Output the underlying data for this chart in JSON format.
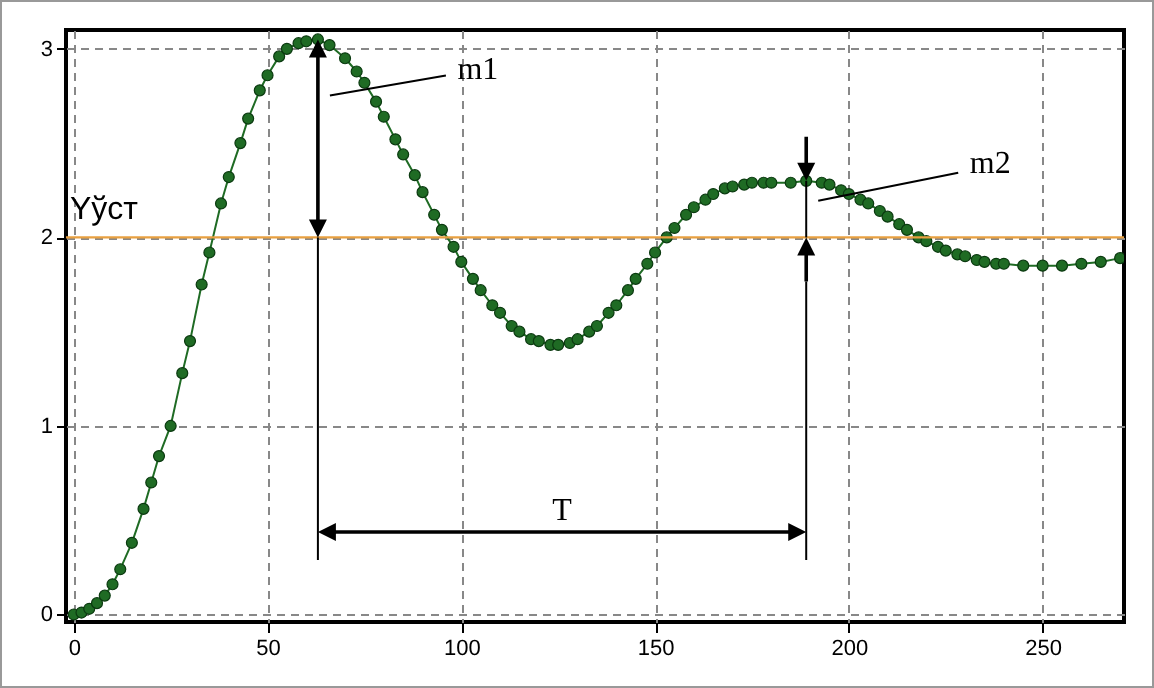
{
  "chart_data": {
    "type": "line",
    "x": [
      0,
      2,
      4,
      6,
      8,
      10,
      12,
      15,
      18,
      20,
      22,
      25,
      28,
      30,
      33,
      35,
      38,
      40,
      43,
      45,
      48,
      50,
      53,
      55,
      58,
      60,
      63,
      66,
      70,
      73,
      75,
      78,
      80,
      83,
      85,
      88,
      90,
      93,
      95,
      98,
      100,
      103,
      105,
      108,
      110,
      113,
      115,
      118,
      120,
      123,
      125,
      128,
      130,
      133,
      135,
      138,
      140,
      143,
      145,
      148,
      150,
      153,
      155,
      158,
      160,
      163,
      165,
      168,
      170,
      173,
      175,
      178,
      180,
      185,
      189,
      193,
      195,
      198,
      200,
      203,
      205,
      208,
      210,
      213,
      215,
      218,
      220,
      223,
      225,
      228,
      230,
      233,
      235,
      238,
      240,
      245,
      250,
      255,
      260,
      265,
      270
    ],
    "series": [
      {
        "color": "#1f6b24",
        "values": [
          0,
          0.01,
          0.03,
          0.06,
          0.1,
          0.16,
          0.24,
          0.38,
          0.56,
          0.7,
          0.84,
          1.0,
          1.28,
          1.45,
          1.75,
          1.92,
          2.18,
          2.32,
          2.5,
          2.63,
          2.78,
          2.86,
          2.96,
          3.0,
          3.03,
          3.04,
          3.05,
          3.02,
          2.95,
          2.88,
          2.82,
          2.72,
          2.64,
          2.52,
          2.44,
          2.33,
          2.24,
          2.12,
          2.04,
          1.95,
          1.87,
          1.78,
          1.72,
          1.64,
          1.6,
          1.53,
          1.5,
          1.46,
          1.45,
          1.43,
          1.43,
          1.44,
          1.46,
          1.5,
          1.53,
          1.6,
          1.64,
          1.72,
          1.78,
          1.86,
          1.92,
          2.0,
          2.05,
          2.12,
          2.16,
          2.2,
          2.23,
          2.26,
          2.27,
          2.28,
          2.29,
          2.29,
          2.29,
          2.29,
          2.3,
          2.29,
          2.28,
          2.25,
          2.23,
          2.2,
          2.18,
          2.14,
          2.11,
          2.07,
          2.04,
          2.0,
          1.98,
          1.95,
          1.93,
          1.91,
          1.9,
          1.88,
          1.87,
          1.86,
          1.86,
          1.85,
          1.85,
          1.85,
          1.86,
          1.87,
          1.89
        ]
      }
    ],
    "xlim": [
      -2,
      271
    ],
    "ylim": [
      -0.04,
      3.1
    ],
    "xticks": [
      0,
      50,
      100,
      150,
      200,
      250
    ],
    "yticks": [
      0,
      1,
      2,
      3
    ],
    "grid": true,
    "marker": "circle",
    "line_style": "solid",
    "ref_lines": [
      {
        "axis": "y",
        "value": 2,
        "label": "Yўст",
        "color": "#e8a040"
      }
    ],
    "annotations": [
      "m1",
      "m2",
      "T"
    ]
  }
}
